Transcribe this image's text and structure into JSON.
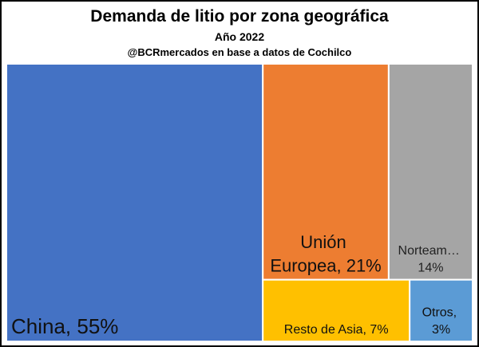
{
  "chart_data": {
    "type": "treemap",
    "title": "Demanda de litio por zona geográfica",
    "subtitle": "Año 2022",
    "source": "@BCRmercados en base a datos de Cochilco",
    "values": [
      55,
      21,
      14,
      7,
      3
    ],
    "value_labels": [
      "China, 55%",
      "Unión Europea, 21%",
      "Norteam… 14%",
      "Resto de Asia, 7%",
      "Otros, 3%"
    ],
    "colors": [
      "#4472c4",
      "#ed7d31",
      "#a5a5a5",
      "#ffc000",
      "#5b9bd5"
    ]
  }
}
